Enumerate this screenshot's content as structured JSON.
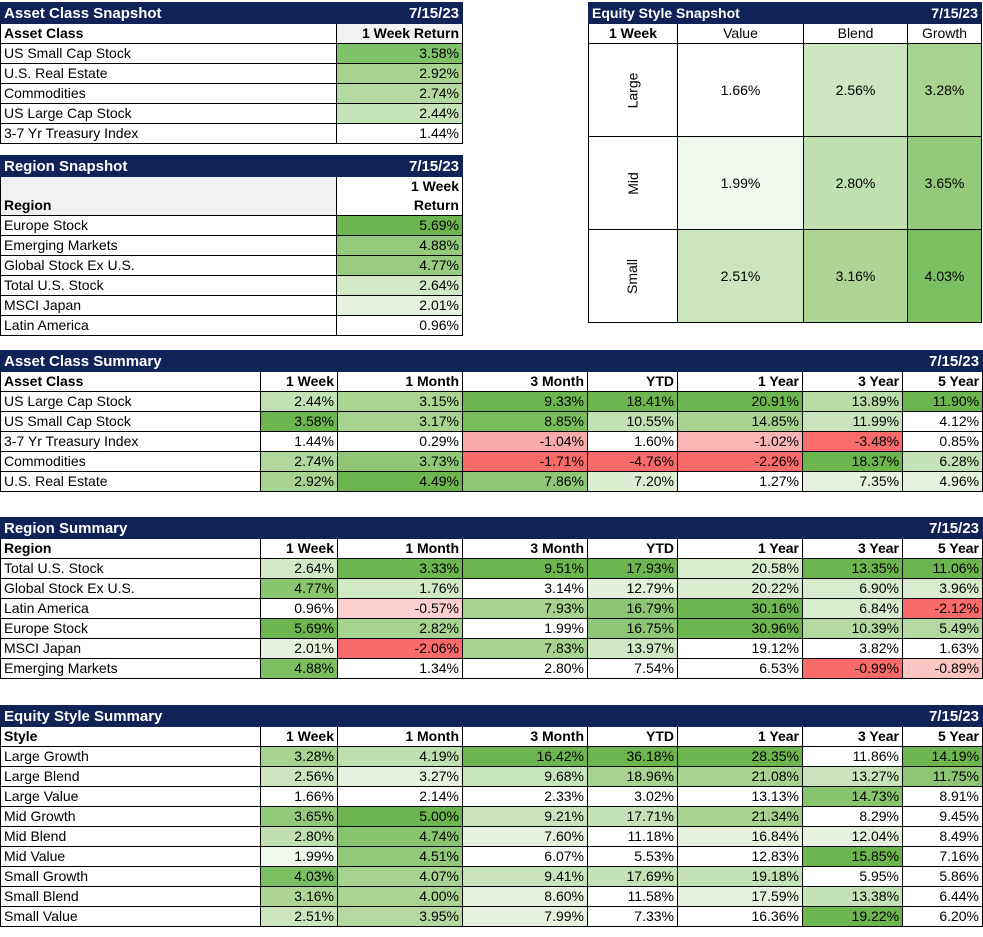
{
  "asset_snapshot": {
    "title": "Asset Class Snapshot",
    "date": "7/15/23",
    "col_label": "Asset Class",
    "col_value": "1 Week Return",
    "rows": [
      {
        "name": "US Small Cap Stock",
        "value": "3.58%",
        "color": "#80c26a"
      },
      {
        "name": "U.S. Real Estate",
        "value": "2.92%",
        "color": "#a6d38f"
      },
      {
        "name": "Commodities",
        "value": "2.74%",
        "color": "#b3d9a0"
      },
      {
        "name": "US Large Cap Stock",
        "value": "2.44%",
        "color": "#c5e3b6"
      },
      {
        "name": "3-7 Yr Treasury Index",
        "value": "1.44%",
        "color": "#ffffff"
      }
    ]
  },
  "region_snapshot": {
    "title": "Region Snapshot",
    "date": "7/15/23",
    "col_value_line1": "1 Week",
    "col_value_line2": "Return",
    "col_label": "Region",
    "rows": [
      {
        "name": "Europe Stock",
        "value": "5.69%",
        "color": "#6db64f"
      },
      {
        "name": "Emerging Markets",
        "value": "4.88%",
        "color": "#93ca7c"
      },
      {
        "name": "Global Stock Ex U.S.",
        "value": "4.77%",
        "color": "#98cc81"
      },
      {
        "name": "Total U.S. Stock",
        "value": "2.64%",
        "color": "#d2e9c6"
      },
      {
        "name": "MSCI Japan",
        "value": "2.01%",
        "color": "#e6f2df"
      },
      {
        "name": "Latin America",
        "value": "0.96%",
        "color": "#ffffff"
      }
    ]
  },
  "style_snapshot": {
    "title": "Equity Style Snapshot",
    "date": "7/15/23",
    "corner": "1 Week",
    "columns": [
      "Value",
      "Blend",
      "Growth"
    ],
    "rows": [
      {
        "label": "Large",
        "cells": [
          {
            "value": "1.66%",
            "color": "#ffffff"
          },
          {
            "value": "2.56%",
            "color": "#cde6c0"
          },
          {
            "value": "3.28%",
            "color": "#a6d38f"
          }
        ]
      },
      {
        "label": "Mid",
        "cells": [
          {
            "value": "1.99%",
            "color": "#f1f8ed"
          },
          {
            "value": "2.80%",
            "color": "#c0e0b0"
          },
          {
            "value": "3.65%",
            "color": "#92c97b"
          }
        ]
      },
      {
        "label": "Small",
        "cells": [
          {
            "value": "2.51%",
            "color": "#cbe5bd"
          },
          {
            "value": "3.16%",
            "color": "#add696"
          },
          {
            "value": "4.03%",
            "color": "#7bbf63"
          }
        ]
      }
    ]
  },
  "summaries": [
    {
      "id": "asset",
      "title": "Asset Class Summary",
      "date": "7/15/23",
      "headers": [
        "Asset Class",
        "1 Week",
        "1 Month",
        "3 Month",
        "YTD",
        "1 Year",
        "3 Year",
        "5 Year"
      ],
      "rows": [
        {
          "name": "US Large Cap Stock",
          "cells": [
            {
              "v": "2.44%",
              "c": "#c3e2b4"
            },
            {
              "v": "3.15%",
              "c": "#a9d492"
            },
            {
              "v": "9.33%",
              "c": "#6db64f"
            },
            {
              "v": "18.41%",
              "c": "#6db64f"
            },
            {
              "v": "20.91%",
              "c": "#6db64f"
            },
            {
              "v": "13.89%",
              "c": "#b9dca7"
            },
            {
              "v": "11.90%",
              "c": "#6db64f"
            }
          ]
        },
        {
          "name": "US Small Cap Stock",
          "cells": [
            {
              "v": "3.58%",
              "c": "#6db64f"
            },
            {
              "v": "3.17%",
              "c": "#a7d390"
            },
            {
              "v": "8.85%",
              "c": "#78bc5b"
            },
            {
              "v": "10.55%",
              "c": "#c2e1b2"
            },
            {
              "v": "14.85%",
              "c": "#a6d38f"
            },
            {
              "v": "11.99%",
              "c": "#c9e4bb"
            },
            {
              "v": "4.12%",
              "c": "#ffffff"
            }
          ]
        },
        {
          "name": "3-7 Yr Treasury Index",
          "cells": [
            {
              "v": "1.44%",
              "c": "#ffffff"
            },
            {
              "v": "0.29%",
              "c": "#ffffff"
            },
            {
              "v": "-1.04%",
              "c": "#f9aaa9"
            },
            {
              "v": "1.60%",
              "c": "#ffffff"
            },
            {
              "v": "-1.02%",
              "c": "#f8b5b4"
            },
            {
              "v": "-3.48%",
              "c": "#f86c6b"
            },
            {
              "v": "0.85%",
              "c": "#ffffff"
            }
          ]
        },
        {
          "name": "Commodities",
          "cells": [
            {
              "v": "2.74%",
              "c": "#b1d79d"
            },
            {
              "v": "3.73%",
              "c": "#8fc777"
            },
            {
              "v": "-1.71%",
              "c": "#f86b6a"
            },
            {
              "v": "-4.76%",
              "c": "#f86b6a"
            },
            {
              "v": "-2.26%",
              "c": "#f86b6a"
            },
            {
              "v": "18.37%",
              "c": "#6db64f"
            },
            {
              "v": "6.28%",
              "c": "#c4e2b5"
            }
          ]
        },
        {
          "name": "U.S. Real Estate",
          "cells": [
            {
              "v": "2.92%",
              "c": "#a7d390"
            },
            {
              "v": "4.49%",
              "c": "#6db64f"
            },
            {
              "v": "7.86%",
              "c": "#8fc777"
            },
            {
              "v": "7.20%",
              "c": "#ddeed3"
            },
            {
              "v": "1.27%",
              "c": "#ffffff"
            },
            {
              "v": "7.35%",
              "c": "#e6f2df"
            },
            {
              "v": "4.96%",
              "c": "#e6f2df"
            }
          ]
        }
      ]
    },
    {
      "id": "region",
      "title": "Region Summary",
      "date": "7/15/23",
      "headers": [
        "Region",
        "1 Week",
        "1 Month",
        "3 Month",
        "YTD",
        "1 Year",
        "3 Year",
        "5 Year"
      ],
      "rows": [
        {
          "name": "Total U.S. Stock",
          "cells": [
            {
              "v": "2.64%",
              "c": "#d2e9c6"
            },
            {
              "v": "3.33%",
              "c": "#6db64f"
            },
            {
              "v": "9.51%",
              "c": "#6db64f"
            },
            {
              "v": "17.93%",
              "c": "#6db64f"
            },
            {
              "v": "20.58%",
              "c": "#d9ecce"
            },
            {
              "v": "13.35%",
              "c": "#6db64f"
            },
            {
              "v": "11.06%",
              "c": "#6db64f"
            }
          ]
        },
        {
          "name": "Global Stock Ex U.S.",
          "cells": [
            {
              "v": "4.77%",
              "c": "#89c46f"
            },
            {
              "v": "1.76%",
              "c": "#d2e9c6"
            },
            {
              "v": "3.14%",
              "c": "#ffffff"
            },
            {
              "v": "12.79%",
              "c": "#e3f1db"
            },
            {
              "v": "20.22%",
              "c": "#dbedd1"
            },
            {
              "v": "6.90%",
              "c": "#d8ebcd"
            },
            {
              "v": "3.96%",
              "c": "#d8ebcd"
            }
          ]
        },
        {
          "name": "Latin America",
          "cells": [
            {
              "v": "0.96%",
              "c": "#ffffff"
            },
            {
              "v": "-0.57%",
              "c": "#fbd0cf"
            },
            {
              "v": "7.93%",
              "c": "#a6d38f"
            },
            {
              "v": "16.79%",
              "c": "#8cc573"
            },
            {
              "v": "30.16%",
              "c": "#6db64f"
            },
            {
              "v": "6.84%",
              "c": "#d9ecce"
            },
            {
              "v": "-2.12%",
              "c": "#f86b6a"
            }
          ]
        },
        {
          "name": "Europe Stock",
          "cells": [
            {
              "v": "5.69%",
              "c": "#6db64f"
            },
            {
              "v": "2.82%",
              "c": "#a6d38f"
            },
            {
              "v": "1.99%",
              "c": "#ffffff"
            },
            {
              "v": "16.75%",
              "c": "#8dc674"
            },
            {
              "v": "30.96%",
              "c": "#6db64f"
            },
            {
              "v": "10.39%",
              "c": "#b3d9a0"
            },
            {
              "v": "5.49%",
              "c": "#b3d9a0"
            }
          ]
        },
        {
          "name": "MSCI Japan",
          "cells": [
            {
              "v": "2.01%",
              "c": "#e6f2df"
            },
            {
              "v": "-2.06%",
              "c": "#f86b6a"
            },
            {
              "v": "7.83%",
              "c": "#a7d390"
            },
            {
              "v": "13.97%",
              "c": "#d0e8c3"
            },
            {
              "v": "19.12%",
              "c": "#ffffff"
            },
            {
              "v": "3.82%",
              "c": "#ffffff"
            },
            {
              "v": "1.63%",
              "c": "#ffffff"
            }
          ]
        },
        {
          "name": "Emerging Markets",
          "cells": [
            {
              "v": "4.88%",
              "c": "#7dbf60"
            },
            {
              "v": "1.34%",
              "c": "#ffffff"
            },
            {
              "v": "2.80%",
              "c": "#ffffff"
            },
            {
              "v": "7.54%",
              "c": "#ffffff"
            },
            {
              "v": "6.53%",
              "c": "#ffffff"
            },
            {
              "v": "-0.99%",
              "c": "#f86b6a"
            },
            {
              "v": "-0.89%",
              "c": "#fbc5c4"
            }
          ]
        }
      ]
    },
    {
      "id": "style",
      "title": "Equity Style Summary",
      "date": "7/15/23",
      "headers": [
        "Style",
        "1 Week",
        "1 Month",
        "3 Month",
        "YTD",
        "1 Year",
        "3 Year",
        "5 Year"
      ],
      "rows": [
        {
          "name": "Large Growth",
          "cells": [
            {
              "v": "3.28%",
              "c": "#a6d38f"
            },
            {
              "v": "4.19%",
              "c": "#bfe0ae"
            },
            {
              "v": "16.42%",
              "c": "#6db64f"
            },
            {
              "v": "36.18%",
              "c": "#6db64f"
            },
            {
              "v": "28.35%",
              "c": "#6db64f"
            },
            {
              "v": "11.86%",
              "c": "#ffffff"
            },
            {
              "v": "14.19%",
              "c": "#6db64f"
            }
          ]
        },
        {
          "name": "Large Blend",
          "cells": [
            {
              "v": "2.56%",
              "c": "#cde6c0"
            },
            {
              "v": "3.27%",
              "c": "#e6f2df"
            },
            {
              "v": "9.68%",
              "c": "#c8e4ba"
            },
            {
              "v": "18.96%",
              "c": "#a6d38f"
            },
            {
              "v": "21.08%",
              "c": "#a6d38f"
            },
            {
              "v": "13.27%",
              "c": "#c9e4bb"
            },
            {
              "v": "11.75%",
              "c": "#8dc674"
            }
          ]
        },
        {
          "name": "Large Value",
          "cells": [
            {
              "v": "1.66%",
              "c": "#ffffff"
            },
            {
              "v": "2.14%",
              "c": "#ffffff"
            },
            {
              "v": "2.33%",
              "c": "#ffffff"
            },
            {
              "v": "3.02%",
              "c": "#ffffff"
            },
            {
              "v": "13.13%",
              "c": "#ffffff"
            },
            {
              "v": "14.73%",
              "c": "#89c46f"
            },
            {
              "v": "8.91%",
              "c": "#ffffff"
            }
          ]
        },
        {
          "name": "Mid Growth",
          "cells": [
            {
              "v": "3.65%",
              "c": "#92c97b"
            },
            {
              "v": "5.00%",
              "c": "#6db64f"
            },
            {
              "v": "9.21%",
              "c": "#c9e4bb"
            },
            {
              "v": "17.71%",
              "c": "#c4e2b5"
            },
            {
              "v": "21.34%",
              "c": "#a6d38f"
            },
            {
              "v": "8.29%",
              "c": "#ffffff"
            },
            {
              "v": "9.45%",
              "c": "#ffffff"
            }
          ]
        },
        {
          "name": "Mid Blend",
          "cells": [
            {
              "v": "2.80%",
              "c": "#c0e0b0"
            },
            {
              "v": "4.74%",
              "c": "#89c46f"
            },
            {
              "v": "7.60%",
              "c": "#e6f2df"
            },
            {
              "v": "11.18%",
              "c": "#ffffff"
            },
            {
              "v": "16.84%",
              "c": "#e6f2df"
            },
            {
              "v": "12.04%",
              "c": "#e6f2df"
            },
            {
              "v": "8.49%",
              "c": "#ffffff"
            }
          ]
        },
        {
          "name": "Mid Value",
          "cells": [
            {
              "v": "1.99%",
              "c": "#f1f8ed"
            },
            {
              "v": "4.51%",
              "c": "#92c97b"
            },
            {
              "v": "6.07%",
              "c": "#ffffff"
            },
            {
              "v": "5.53%",
              "c": "#ffffff"
            },
            {
              "v": "12.83%",
              "c": "#ffffff"
            },
            {
              "v": "15.85%",
              "c": "#6db64f"
            },
            {
              "v": "7.16%",
              "c": "#ffffff"
            }
          ]
        },
        {
          "name": "Small Growth",
          "cells": [
            {
              "v": "4.03%",
              "c": "#7bbf63"
            },
            {
              "v": "4.07%",
              "c": "#a6d38f"
            },
            {
              "v": "9.41%",
              "c": "#c9e4bb"
            },
            {
              "v": "17.69%",
              "c": "#c4e2b5"
            },
            {
              "v": "19.18%",
              "c": "#c4e2b5"
            },
            {
              "v": "5.95%",
              "c": "#ffffff"
            },
            {
              "v": "5.86%",
              "c": "#ffffff"
            }
          ]
        },
        {
          "name": "Small Blend",
          "cells": [
            {
              "v": "3.16%",
              "c": "#add696"
            },
            {
              "v": "4.00%",
              "c": "#a9d492"
            },
            {
              "v": "8.60%",
              "c": "#e6f2df"
            },
            {
              "v": "11.58%",
              "c": "#ffffff"
            },
            {
              "v": "17.59%",
              "c": "#e6f2df"
            },
            {
              "v": "13.38%",
              "c": "#c4e2b5"
            },
            {
              "v": "6.44%",
              "c": "#ffffff"
            }
          ]
        },
        {
          "name": "Small Value",
          "cells": [
            {
              "v": "2.51%",
              "c": "#cbe5bd"
            },
            {
              "v": "3.95%",
              "c": "#b3d9a0"
            },
            {
              "v": "7.99%",
              "c": "#e6f2df"
            },
            {
              "v": "7.33%",
              "c": "#ffffff"
            },
            {
              "v": "16.36%",
              "c": "#ffffff"
            },
            {
              "v": "19.22%",
              "c": "#6db64f"
            },
            {
              "v": "6.20%",
              "c": "#ffffff"
            }
          ]
        }
      ]
    }
  ]
}
